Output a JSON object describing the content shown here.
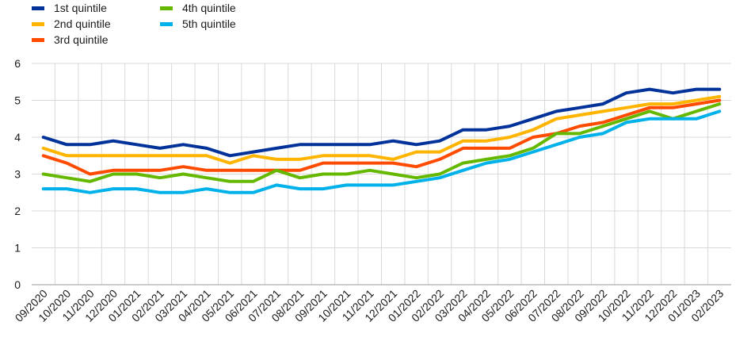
{
  "chart_data": {
    "type": "line",
    "title": "",
    "xlabel": "",
    "ylabel": "",
    "ylim": [
      0,
      6
    ],
    "yticks": [
      0,
      1,
      2,
      3,
      4,
      5,
      6
    ],
    "grid": true,
    "legend_position": "top-left",
    "categories": [
      "09/2020",
      "10/2020",
      "11/2020",
      "12/2020",
      "01/2021",
      "02/2021",
      "03/2021",
      "04/2021",
      "05/2021",
      "06/2021",
      "07/2021",
      "08/2021",
      "09/2021",
      "10/2021",
      "11/2021",
      "12/2021",
      "01/2022",
      "02/2022",
      "03/2022",
      "04/2022",
      "05/2022",
      "06/2022",
      "07/2022",
      "08/2022",
      "09/2022",
      "10/2022",
      "11/2022",
      "12/2022",
      "01/2023",
      "02/2023"
    ],
    "series": [
      {
        "name": "1st quintile",
        "color": "#003299",
        "values": [
          4.0,
          3.8,
          3.8,
          3.9,
          3.8,
          3.7,
          3.8,
          3.7,
          3.5,
          3.6,
          3.7,
          3.8,
          3.8,
          3.8,
          3.8,
          3.9,
          3.8,
          3.9,
          4.2,
          4.2,
          4.3,
          4.5,
          4.7,
          4.8,
          4.9,
          5.2,
          5.3,
          5.2,
          5.3,
          5.3
        ]
      },
      {
        "name": "2nd quintile",
        "color": "#FFB400",
        "values": [
          3.7,
          3.5,
          3.5,
          3.5,
          3.5,
          3.5,
          3.5,
          3.5,
          3.3,
          3.5,
          3.4,
          3.4,
          3.5,
          3.5,
          3.5,
          3.4,
          3.6,
          3.6,
          3.9,
          3.9,
          4.0,
          4.2,
          4.5,
          4.6,
          4.7,
          4.8,
          4.9,
          4.9,
          5.0,
          5.1
        ]
      },
      {
        "name": "3rd quintile",
        "color": "#FF4B00",
        "values": [
          3.5,
          3.3,
          3.0,
          3.1,
          3.1,
          3.1,
          3.2,
          3.1,
          3.1,
          3.1,
          3.1,
          3.1,
          3.3,
          3.3,
          3.3,
          3.3,
          3.2,
          3.4,
          3.7,
          3.7,
          3.7,
          4.0,
          4.1,
          4.3,
          4.4,
          4.6,
          4.8,
          4.8,
          4.9,
          5.0
        ]
      },
      {
        "name": "4th quintile",
        "color": "#65B800",
        "values": [
          3.0,
          2.9,
          2.8,
          3.0,
          3.0,
          2.9,
          3.0,
          2.9,
          2.8,
          2.8,
          3.1,
          2.9,
          3.0,
          3.0,
          3.1,
          3.0,
          2.9,
          3.0,
          3.3,
          3.4,
          3.5,
          3.7,
          4.1,
          4.1,
          4.3,
          4.5,
          4.7,
          4.5,
          4.7,
          4.9
        ]
      },
      {
        "name": "5th quintile",
        "color": "#00B1EA",
        "values": [
          2.6,
          2.6,
          2.5,
          2.6,
          2.6,
          2.5,
          2.5,
          2.6,
          2.5,
          2.5,
          2.7,
          2.6,
          2.6,
          2.7,
          2.7,
          2.7,
          2.8,
          2.9,
          3.1,
          3.3,
          3.4,
          3.6,
          3.8,
          4.0,
          4.1,
          4.4,
          4.5,
          4.5,
          4.5,
          4.7
        ]
      }
    ]
  }
}
